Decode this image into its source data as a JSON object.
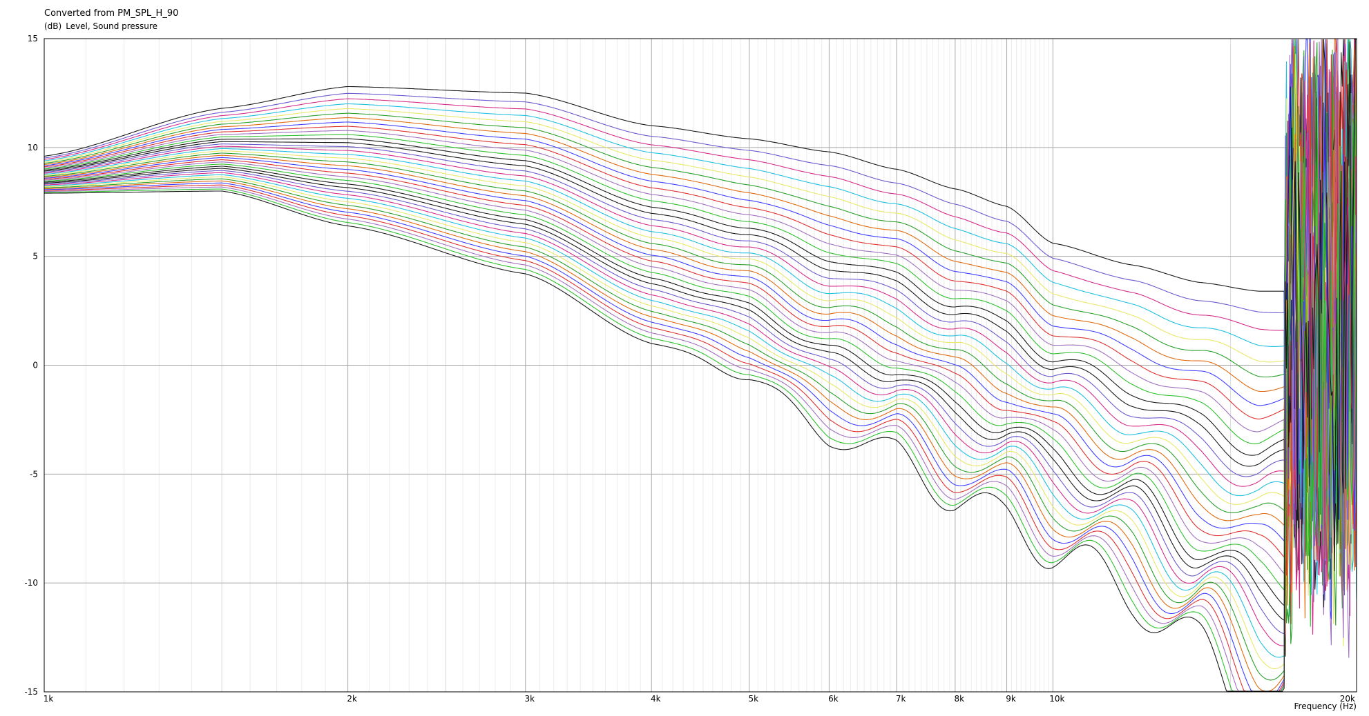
{
  "chart_data": {
    "type": "line",
    "title": "Converted from PM_SPL_H_90",
    "ylabel_unit": "(dB)",
    "ylabel": "Level, Sound pressure",
    "xlabel": "Frequency  (Hz)",
    "xscale": "log",
    "xlim": [
      1000,
      20000
    ],
    "ylim": [
      -15,
      15
    ],
    "grid": true,
    "x_ticks": [
      {
        "value": 1000,
        "label": "1k"
      },
      {
        "value": 2000,
        "label": "2k"
      },
      {
        "value": 3000,
        "label": "3k"
      },
      {
        "value": 4000,
        "label": "4k"
      },
      {
        "value": 5000,
        "label": "5k"
      },
      {
        "value": 6000,
        "label": "6k"
      },
      {
        "value": 7000,
        "label": "7k"
      },
      {
        "value": 8000,
        "label": "8k"
      },
      {
        "value": 9000,
        "label": "9k"
      },
      {
        "value": 10000,
        "label": "10k"
      },
      {
        "value": 20000,
        "label": "20k"
      }
    ],
    "y_ticks": [
      15,
      10,
      5,
      0,
      -5,
      -10,
      -15
    ],
    "x": [
      1000,
      1500,
      2000,
      3000,
      4000,
      5000,
      6000,
      7000,
      8000,
      9000,
      10000,
      12000,
      14000,
      16000
    ],
    "series_count": 36,
    "series_colors": [
      "#1a1a1a",
      "#6a5acd",
      "#d62c8b",
      "#20c0e0",
      "#e8e86a",
      "#2aa02a",
      "#e06b10",
      "#4040ff",
      "#e03030",
      "#a070c0",
      "#30c030",
      "#1a1a1a"
    ],
    "top_series": [
      9.6,
      11.8,
      12.8,
      12.5,
      11.0,
      10.4,
      9.8,
      9.0,
      8.1,
      7.3,
      5.6,
      4.6,
      3.8,
      3.4
    ],
    "bottom_series": [
      7.9,
      8.0,
      6.4,
      4.2,
      1.0,
      -0.5,
      -3.3,
      -4.0,
      -6.2,
      -7.0,
      -8.5,
      -10.5,
      -13.2,
      -16.0
    ],
    "high_frequency_peaks": [
      {
        "x": 17200,
        "y": 12.8
      },
      {
        "x": 17400,
        "y": 14.3
      },
      {
        "x": 17900,
        "y": 10.7
      },
      {
        "x": 18600,
        "y": 10.7
      },
      {
        "x": 19600,
        "y": 7.7
      }
    ]
  }
}
